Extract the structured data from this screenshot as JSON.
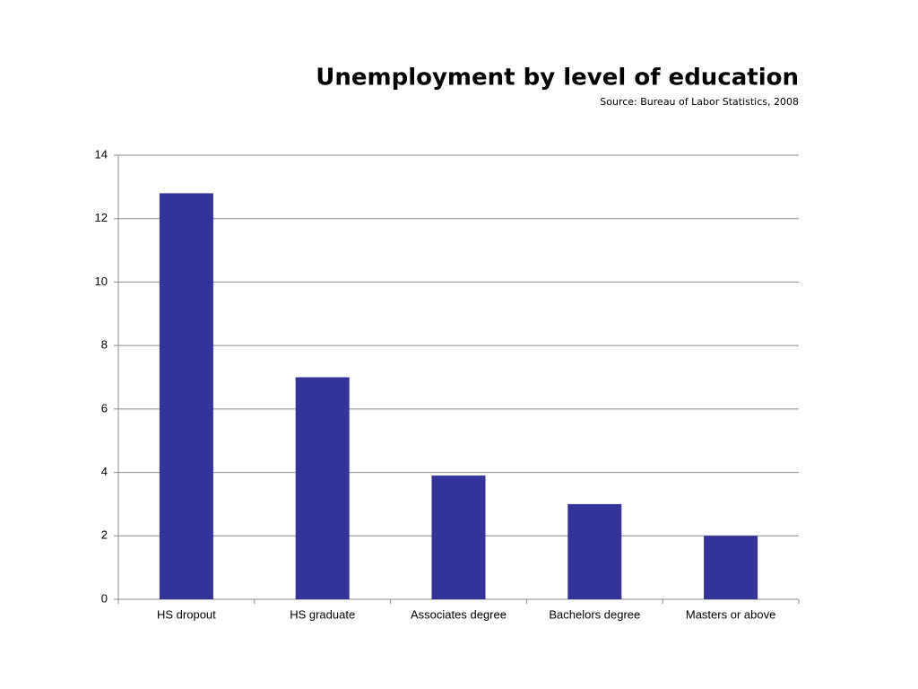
{
  "chart_data": {
    "type": "bar",
    "title": "Unemployment by level of education",
    "subtitle": "Source: Bureau of Labor Statistics, 2008",
    "categories": [
      "HS dropout",
      "HS graduate",
      "Associates degree",
      "Bachelors degree",
      "Masters or above"
    ],
    "values": [
      12.8,
      7.0,
      3.9,
      3.0,
      2.0
    ],
    "color": "#333399",
    "ylim": [
      0,
      14
    ],
    "yticks": [
      0,
      2,
      4,
      6,
      8,
      10,
      12,
      14
    ],
    "grid": true
  }
}
